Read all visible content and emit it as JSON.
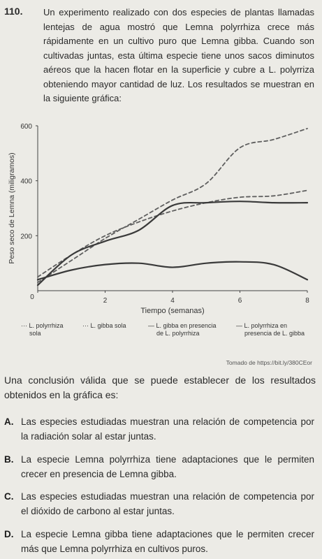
{
  "question": {
    "number": "110.",
    "stem": "Un experimento realizado con dos especies de plantas llamadas lentejas de agua mostró que Lemna polyrrhiza crece más rápidamente en un cultivo puro que Lemna gibba. Cuando son cultivadas juntas, esta última especie tiene unos sacos diminutos aéreos que la hacen flotar en la superficie y cubre a L. polyrriza obteniendo mayor cantidad de luz. Los resultados se muestran en la siguiente gráfica:"
  },
  "chart_data": {
    "type": "line",
    "xlabel": "Tiempo (semanas)",
    "ylabel": "Peso seco de Lemna (miligramos)",
    "xlim": [
      0,
      8
    ],
    "ylim": [
      0,
      600
    ],
    "x_ticks": [
      "0",
      "2",
      "4",
      "6",
      "8"
    ],
    "y_ticks": [
      "200",
      "400",
      "600"
    ],
    "x": [
      0,
      1,
      2,
      3,
      4,
      5,
      6,
      7,
      8
    ],
    "series": [
      {
        "name": "L. polyrrhiza sola",
        "style": "dashed",
        "values": [
          30,
          110,
          190,
          260,
          330,
          390,
          520,
          550,
          590
        ]
      },
      {
        "name": "L. gibba sola",
        "style": "dashed",
        "values": [
          50,
          130,
          200,
          250,
          290,
          320,
          340,
          345,
          365
        ]
      },
      {
        "name": "L. gibba en presencia de L. polyrrhiza",
        "style": "solid",
        "values": [
          20,
          130,
          180,
          220,
          310,
          320,
          325,
          320,
          320
        ]
      },
      {
        "name": "L. polyrrhiza en presencia de L. gibba",
        "style": "solid",
        "values": [
          40,
          75,
          95,
          100,
          85,
          100,
          105,
          95,
          40
        ]
      }
    ],
    "legend_labels": [
      {
        "marker": "···",
        "line1": "L. polyrrhiza",
        "line2": "sola"
      },
      {
        "marker": "···",
        "line1": "L. gibba sola",
        "line2": ""
      },
      {
        "marker": "—",
        "line1": "L. gibba en presencia",
        "line2": "de L. polyrrhiza"
      },
      {
        "marker": "—",
        "line1": "L. polyrrhiza en",
        "line2": "presencia de L. gibba"
      }
    ],
    "colors": {
      "dashed": "#5f5f5f",
      "solid": "#3a3a3a"
    }
  },
  "source": "Tomado de https://bit.ly/380CEor",
  "conclusion_prompt": "Una conclusión válida que se puede establecer de los resultados obtenidos en la gráfica es:",
  "options": [
    {
      "letter": "A.",
      "text": "Las especies estudiadas muestran una relación de competencia por la radiación solar al estar juntas."
    },
    {
      "letter": "B.",
      "text": "La especie Lemna polyrrhiza tiene adaptaciones que le permiten crecer en presencia de Lemna gibba."
    },
    {
      "letter": "C.",
      "text": "Las especies estudiadas muestran una relación de competencia por el dióxido de carbono al estar juntas."
    },
    {
      "letter": "D.",
      "text": "La especie Lemna gibba tiene adaptaciones que le permiten crecer más que Lemna polyrrhiza en cultivos puros."
    }
  ]
}
